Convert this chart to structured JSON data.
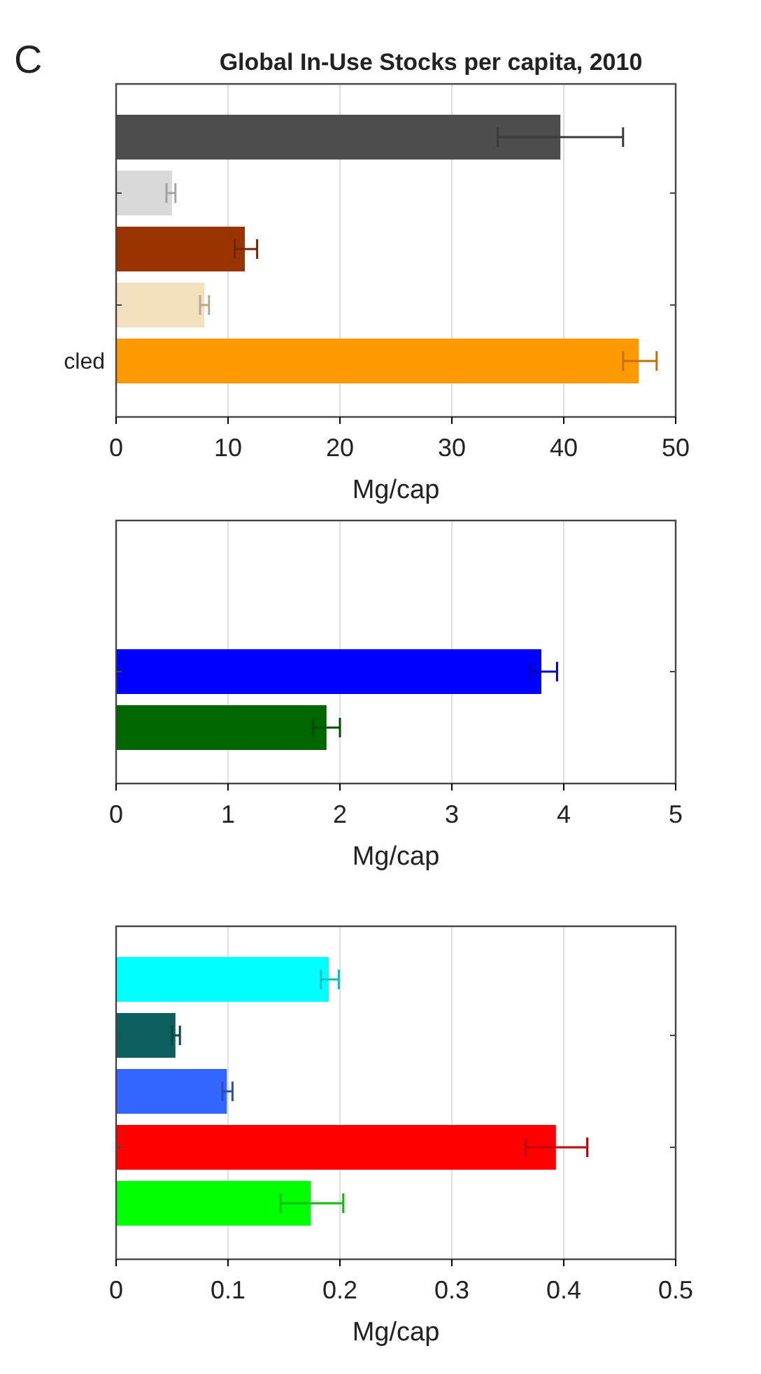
{
  "chart_data": [
    {
      "type": "bar",
      "orientation": "horizontal",
      "title": "Global In-Use Stocks per capita, 2010",
      "annotations": [
        "C"
      ],
      "xlabel": "Mg/cap",
      "categories": [
        null,
        null,
        null,
        null,
        "cled"
      ],
      "values": [
        39.7,
        5.0,
        11.5,
        7.9,
        46.7
      ],
      "colors": [
        "#4d4d4d",
        "#d9d9d9",
        "#993300",
        "#f2dfbe",
        "#ff9900"
      ],
      "errors": [
        [
          34.1,
          45.3
        ],
        [
          4.5,
          5.3
        ],
        [
          10.6,
          12.6
        ],
        [
          7.5,
          8.3
        ],
        [
          45.3,
          48.3
        ]
      ],
      "xlim": [
        0,
        50
      ],
      "xticks": [
        0,
        10,
        20,
        30,
        40,
        50
      ],
      "grid": "x"
    },
    {
      "type": "bar",
      "orientation": "horizontal",
      "xlabel": "Mg/cap",
      "categories": [
        null,
        null
      ],
      "values": [
        3.8,
        1.88
      ],
      "colors": [
        "#0000ff",
        "#006600"
      ],
      "errors": [
        [
          3.7,
          3.94
        ],
        [
          1.76,
          2.0
        ]
      ],
      "xlim": [
        0,
        5
      ],
      "xticks": [
        0,
        1,
        2,
        3,
        4,
        5
      ],
      "grid": "x"
    },
    {
      "type": "bar",
      "orientation": "horizontal",
      "xlabel": "Mg/cap",
      "categories": [
        null,
        null,
        null,
        null,
        null
      ],
      "values": [
        0.19,
        0.053,
        0.099,
        0.393,
        0.174
      ],
      "colors": [
        "#00ffff",
        "#0d5e5e",
        "#3366ff",
        "#ff0000",
        "#00ff00"
      ],
      "errors": [
        [
          0.183,
          0.199
        ],
        [
          0.05,
          0.057
        ],
        [
          0.095,
          0.104
        ],
        [
          0.366,
          0.421
        ],
        [
          0.147,
          0.203
        ]
      ],
      "xlim": [
        0,
        0.5
      ],
      "xticks": [
        0,
        0.1,
        0.2,
        0.3,
        0.4,
        0.5
      ],
      "grid": "x"
    }
  ]
}
